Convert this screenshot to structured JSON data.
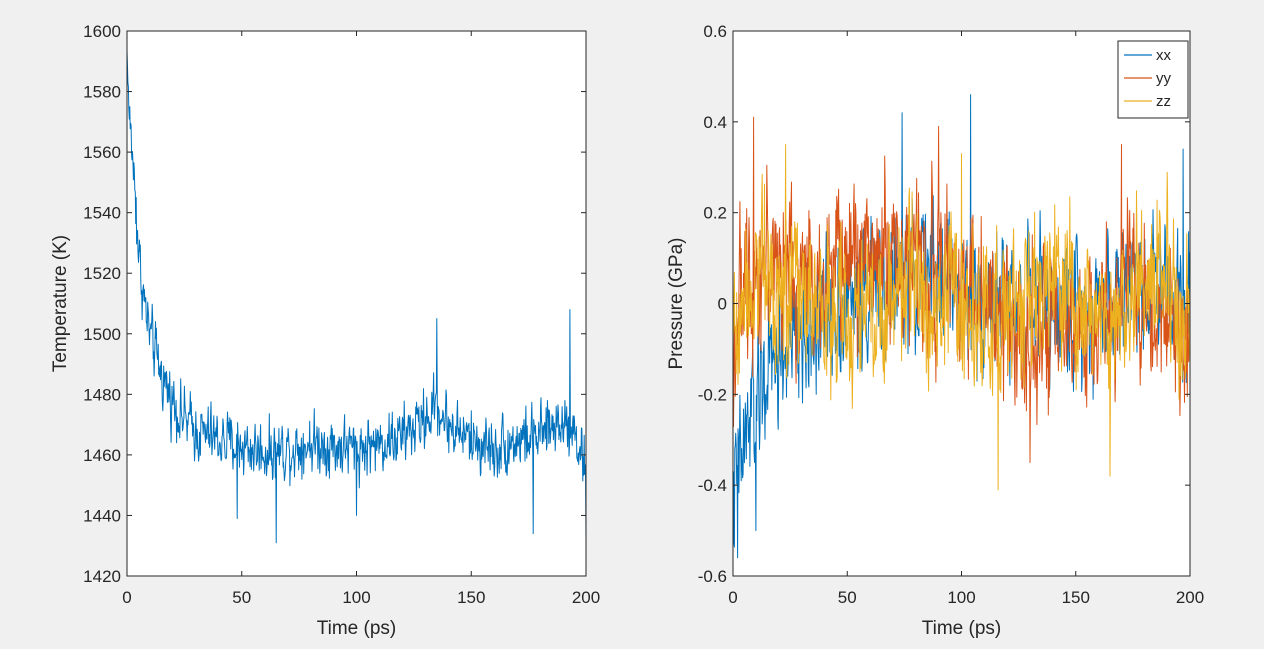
{
  "chart_data": [
    {
      "type": "line",
      "xlabel": "Time (ps)",
      "ylabel": "Temperature (K)",
      "xlim": [
        0,
        200
      ],
      "ylim": [
        1420,
        1600
      ],
      "x_ticks": [
        0,
        50,
        100,
        150,
        200
      ],
      "y_ticks": [
        1420,
        1440,
        1460,
        1480,
        1500,
        1520,
        1540,
        1560,
        1580,
        1600
      ],
      "grid": false,
      "legend": null,
      "series": [
        {
          "color": "#0072BD",
          "anchors": [
            [
              0,
              1592
            ],
            [
              1,
              1572
            ],
            [
              2,
              1562
            ],
            [
              3,
              1553
            ],
            [
              4,
              1540
            ],
            [
              5,
              1528
            ],
            [
              6,
              1520
            ],
            [
              8,
              1508
            ],
            [
              10,
              1500
            ],
            [
              12,
              1494
            ],
            [
              15,
              1487
            ],
            [
              18,
              1481
            ],
            [
              22,
              1475
            ],
            [
              26,
              1471
            ],
            [
              30,
              1468
            ],
            [
              40,
              1465
            ],
            [
              50,
              1463
            ],
            [
              60,
              1461
            ],
            [
              70,
              1462
            ],
            [
              80,
              1464
            ],
            [
              90,
              1463
            ],
            [
              100,
              1462
            ],
            [
              110,
              1464
            ],
            [
              120,
              1466
            ],
            [
              130,
              1472
            ],
            [
              135,
              1476
            ],
            [
              140,
              1470
            ],
            [
              150,
              1465
            ],
            [
              160,
              1462
            ],
            [
              170,
              1465
            ],
            [
              180,
              1466
            ],
            [
              190,
              1472
            ],
            [
              195,
              1468
            ],
            [
              200,
              1455
            ]
          ],
          "noise": 7,
          "spikes": [
            [
              0.5,
              1583
            ],
            [
              4,
              1545
            ],
            [
              135,
              1505
            ],
            [
              193,
              1508
            ],
            [
              65,
              1431
            ],
            [
              177,
              1434
            ],
            [
              200,
              1432
            ],
            [
              48,
              1439
            ],
            [
              100,
              1440
            ]
          ]
        }
      ]
    },
    {
      "type": "line",
      "xlabel": "Time (ps)",
      "ylabel": "Pressure (GPa)",
      "xlim": [
        0,
        200
      ],
      "ylim": [
        -0.6,
        0.6
      ],
      "x_ticks": [
        0,
        50,
        100,
        150,
        200
      ],
      "y_ticks": [
        -0.6,
        -0.4,
        -0.2,
        0,
        0.2,
        0.4,
        0.6
      ],
      "grid": false,
      "legend": "top-right",
      "series": [
        {
          "name": "xx",
          "color": "#0072BD",
          "anchors": [
            [
              0,
              -0.45
            ],
            [
              3,
              -0.35
            ],
            [
              8,
              -0.25
            ],
            [
              15,
              -0.15
            ],
            [
              25,
              -0.1
            ],
            [
              35,
              -0.05
            ],
            [
              45,
              0.0
            ],
            [
              60,
              0.02
            ],
            [
              75,
              0.05
            ],
            [
              90,
              0.07
            ],
            [
              105,
              0.02
            ],
            [
              120,
              0.0
            ],
            [
              140,
              -0.02
            ],
            [
              160,
              0.0
            ],
            [
              175,
              0.05
            ],
            [
              190,
              0.05
            ],
            [
              200,
              0.02
            ]
          ],
          "noise": 0.11,
          "spikes": [
            [
              2,
              -0.56
            ],
            [
              10,
              -0.5
            ],
            [
              104,
              0.46
            ],
            [
              74,
              0.42
            ],
            [
              197,
              0.34
            ]
          ]
        },
        {
          "name": "yy",
          "color": "#D95319",
          "anchors": [
            [
              0,
              -0.1
            ],
            [
              5,
              0.05
            ],
            [
              15,
              0.1
            ],
            [
              30,
              0.05
            ],
            [
              45,
              0.08
            ],
            [
              60,
              0.12
            ],
            [
              75,
              0.1
            ],
            [
              90,
              0.08
            ],
            [
              105,
              0.05
            ],
            [
              115,
              -0.05
            ],
            [
              130,
              -0.05
            ],
            [
              145,
              -0.1
            ],
            [
              160,
              -0.05
            ],
            [
              175,
              0.05
            ],
            [
              190,
              -0.05
            ],
            [
              200,
              -0.1
            ]
          ],
          "noise": 0.12,
          "spikes": [
            [
              9,
              0.41
            ],
            [
              90,
              0.39
            ],
            [
              130,
              -0.35
            ],
            [
              170,
              0.35
            ]
          ]
        },
        {
          "name": "zz",
          "color": "#EDB120",
          "anchors": [
            [
              0,
              -0.05
            ],
            [
              10,
              0.1
            ],
            [
              20,
              0.05
            ],
            [
              35,
              0.0
            ],
            [
              50,
              -0.05
            ],
            [
              65,
              0.0
            ],
            [
              80,
              0.05
            ],
            [
              95,
              0.0
            ],
            [
              110,
              -0.05
            ],
            [
              125,
              0.0
            ],
            [
              140,
              0.05
            ],
            [
              150,
              0.0
            ],
            [
              165,
              -0.05
            ],
            [
              175,
              0.05
            ],
            [
              190,
              0.05
            ],
            [
              200,
              -0.05
            ]
          ],
          "noise": 0.12,
          "spikes": [
            [
              116,
              -0.41
            ],
            [
              165,
              -0.38
            ],
            [
              23,
              0.35
            ],
            [
              100,
              0.33
            ]
          ]
        }
      ]
    }
  ]
}
